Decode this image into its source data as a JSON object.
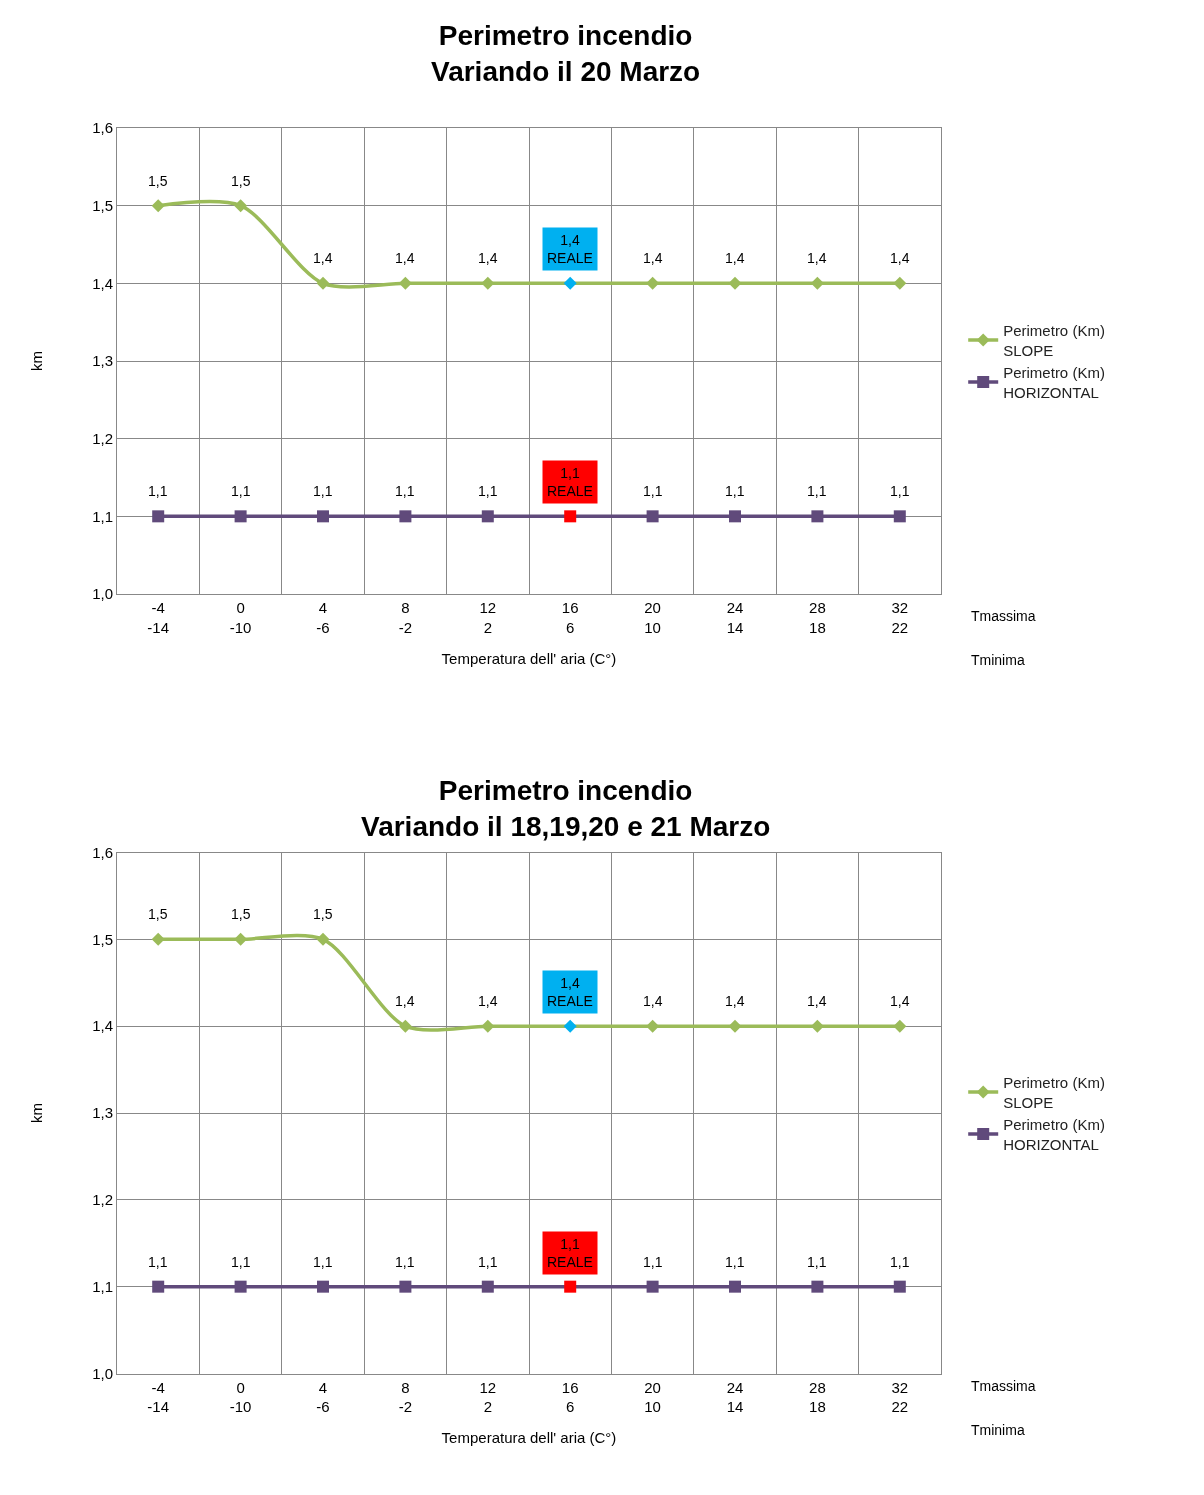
{
  "chart_data": [
    {
      "type": "line",
      "title": "Perimetro incendio\nVariando il 20 Marzo",
      "xlabel": "Temperatura dell' aria (C°)",
      "ylabel": "km",
      "categories": [
        "-4\n-14",
        "0\n-10",
        "4\n-6",
        "8\n-2",
        "12\n2",
        "16\n6",
        "20\n10",
        "24\n14",
        "28\n18",
        "32\n22"
      ],
      "series": [
        {
          "name": "Perimetro (Km)\nSLOPE",
          "color": "#9bbb59",
          "marker": "diamond",
          "values": [
            1.5,
            1.5,
            1.4,
            1.4,
            1.4,
            1.4,
            1.4,
            1.4,
            1.4,
            1.4
          ],
          "colors": [
            "#9bbb59",
            "#9bbb59",
            "#9bbb59",
            "#9bbb59",
            "#9bbb59",
            "#00b0f0",
            "#9bbb59",
            "#9bbb59",
            "#9bbb59",
            "#9bbb59"
          ],
          "value_labels": [
            "1,5",
            "1,5",
            "1,4",
            "1,4",
            "1,4",
            "1,4\nREALE",
            "1,4",
            "1,4",
            "1,4",
            "1,4"
          ]
        },
        {
          "name": "Perimetro (Km)\nHORIZONTAL",
          "color": "#604a7b",
          "marker": "square",
          "values": [
            1.1,
            1.1,
            1.1,
            1.1,
            1.1,
            1.1,
            1.1,
            1.1,
            1.1,
            1.1
          ],
          "colors": [
            "#604a7b",
            "#604a7b",
            "#604a7b",
            "#604a7b",
            "#604a7b",
            "#ff0000",
            "#604a7b",
            "#604a7b",
            "#604a7b",
            "#604a7b"
          ],
          "value_labels": [
            "1,1",
            "1,1",
            "1,1",
            "1,1",
            "1,1",
            "1,1\nREALE",
            "1,1",
            "1,1",
            "1,1",
            "1,1"
          ]
        }
      ],
      "ylim": [
        1.0,
        1.6
      ],
      "yticks": [
        {
          "value": 1.0,
          "label": "1,0"
        },
        {
          "value": 1.1,
          "label": "1,1"
        },
        {
          "value": 1.2,
          "label": "1,2"
        },
        {
          "value": 1.3,
          "label": "1,3"
        },
        {
          "value": 1.4,
          "label": "1,4"
        },
        {
          "value": 1.5,
          "label": "1,5"
        },
        {
          "value": 1.6,
          "label": "1,6"
        }
      ],
      "grid": true,
      "legend": "right",
      "annotations": [
        "Tmassima",
        "Tminima"
      ]
    },
    {
      "type": "line",
      "title": "Perimetro incendio\nVariando il 18,19,20 e 21 Marzo",
      "xlabel": "Temperatura dell' aria (C°)",
      "ylabel": "km",
      "categories": [
        "-4\n-14",
        "0\n-10",
        "4\n-6",
        "8\n-2",
        "12\n2",
        "16\n6",
        "20\n10",
        "24\n14",
        "28\n18",
        "32\n22"
      ],
      "series": [
        {
          "name": "Perimetro (Km)\nSLOPE",
          "color": "#9bbb59",
          "marker": "diamond",
          "values": [
            1.5,
            1.5,
            1.5,
            1.4,
            1.4,
            1.4,
            1.4,
            1.4,
            1.4,
            1.4
          ],
          "colors": [
            "#9bbb59",
            "#9bbb59",
            "#9bbb59",
            "#9bbb59",
            "#9bbb59",
            "#00b0f0",
            "#9bbb59",
            "#9bbb59",
            "#9bbb59",
            "#9bbb59"
          ],
          "value_labels": [
            "1,5",
            "1,5",
            "1,5",
            "1,4",
            "1,4",
            "1,4\nREALE",
            "1,4",
            "1,4",
            "1,4",
            "1,4"
          ]
        },
        {
          "name": "Perimetro (Km)\nHORIZONTAL",
          "color": "#604a7b",
          "marker": "square",
          "values": [
            1.1,
            1.1,
            1.1,
            1.1,
            1.1,
            1.1,
            1.1,
            1.1,
            1.1,
            1.1
          ],
          "colors": [
            "#604a7b",
            "#604a7b",
            "#604a7b",
            "#604a7b",
            "#604a7b",
            "#ff0000",
            "#604a7b",
            "#604a7b",
            "#604a7b",
            "#604a7b"
          ],
          "value_labels": [
            "1,1",
            "1,1",
            "1,1",
            "1,1",
            "1,1",
            "1,1\nREALE",
            "1,1",
            "1,1",
            "1,1",
            "1,1"
          ]
        }
      ],
      "ylim": [
        1.0,
        1.6
      ],
      "yticks": [
        {
          "value": 1.0,
          "label": "1,0"
        },
        {
          "value": 1.1,
          "label": "1,1"
        },
        {
          "value": 1.2,
          "label": "1,2"
        },
        {
          "value": 1.3,
          "label": "1,3"
        },
        {
          "value": 1.4,
          "label": "1,4"
        },
        {
          "value": 1.5,
          "label": "1,5"
        },
        {
          "value": 1.6,
          "label": "1,6"
        }
      ],
      "grid": true,
      "legend": "right",
      "annotations": [
        "Tmassima",
        "Tminima"
      ]
    }
  ]
}
